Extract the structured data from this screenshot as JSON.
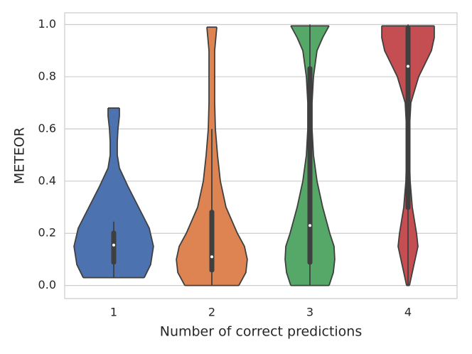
{
  "chart_data": {
    "type": "violin",
    "x_label": "Number of correct predictions",
    "y_label": "METEOR",
    "categories": [
      "1",
      "2",
      "3",
      "4"
    ],
    "ylim": [
      -0.05,
      1.045
    ],
    "yticks": [
      {
        "value": 0,
        "label": "0.0"
      },
      {
        "value": 0.2,
        "label": "0.2"
      },
      {
        "value": 0.4,
        "label": "0.4"
      },
      {
        "value": 0.6,
        "label": "0.6"
      },
      {
        "value": 0.8,
        "label": "0.8"
      },
      {
        "value": 1,
        "label": "1.0"
      }
    ],
    "grid": true,
    "line_color": "#3f3f3f",
    "violins": [
      {
        "color": "#4c72b0",
        "density_y": [
          0.03,
          0.08,
          0.15,
          0.22,
          0.3,
          0.38,
          0.45,
          0.5,
          0.55,
          0.6,
          0.65,
          0.68
        ],
        "density": [
          43,
          52,
          56,
          50,
          35,
          20,
          8,
          5,
          5,
          6,
          8,
          8
        ],
        "whisker_low": 0.03,
        "q1": 0.08,
        "median": 0.155,
        "q3": 0.21,
        "whisker_high": 0.245
      },
      {
        "color": "#dd8452",
        "density_y": [
          0,
          0.05,
          0.1,
          0.15,
          0.2,
          0.3,
          0.4,
          0.5,
          0.6,
          0.7,
          0.8,
          0.9,
          0.99
        ],
        "density": [
          38,
          48,
          50,
          46,
          36,
          20,
          12,
          8,
          5,
          4,
          4,
          4,
          7
        ],
        "whisker_low": 0,
        "q1": 0.05,
        "median": 0.11,
        "q3": 0.29,
        "whisker_high": 0.6
      },
      {
        "color": "#55a868",
        "density_y": [
          0,
          0.05,
          0.1,
          0.15,
          0.2,
          0.3,
          0.4,
          0.5,
          0.6,
          0.7,
          0.8,
          0.9,
          0.95,
          0.995
        ],
        "density": [
          27,
          33,
          35,
          34,
          28,
          18,
          10,
          5,
          3,
          3,
          5,
          10,
          18,
          27
        ],
        "whisker_low": 0,
        "q1": 0.08,
        "median": 0.23,
        "q3": 0.84,
        "whisker_high": 1
      },
      {
        "color": "#c44e52",
        "density_y": [
          0,
          0.05,
          0.1,
          0.15,
          0.2,
          0.3,
          0.4,
          0.5,
          0.6,
          0.7,
          0.8,
          0.85,
          0.9,
          0.95,
          0.995
        ],
        "density": [
          2,
          6,
          10,
          14,
          12,
          6,
          3,
          2,
          2,
          4,
          15,
          24,
          33,
          37,
          37
        ],
        "whisker_low": 0,
        "q1": 0.29,
        "median": 0.84,
        "q3": 0.995,
        "whisker_high": 1
      }
    ]
  }
}
